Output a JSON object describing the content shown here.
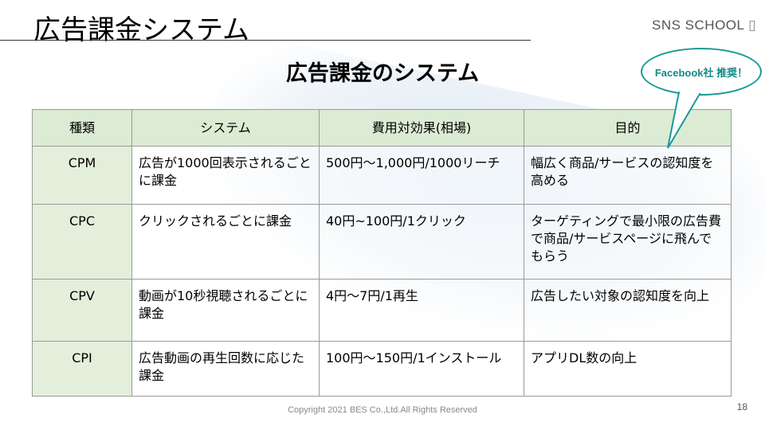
{
  "slide": {
    "title": "広告課金システム",
    "subtitle": "広告課金のシステム",
    "logo": "SNS SCHOOL",
    "bubble": "Facebook社 推奨！",
    "copyright": "Copyright 2021 BES Co.,Ltd.All Rights Reserved",
    "page_number": "18",
    "accent": "#1a9a96"
  },
  "table": {
    "headers": [
      "種類",
      "システム",
      "費用対効果(相場)",
      "目的"
    ],
    "rows": [
      [
        "CPM",
        "広告が1000回表示されるごとに課金",
        "500円～1,000円/1000リーチ",
        "幅広く商品/サービスの認知度を高める"
      ],
      [
        "CPC",
        "クリックされるごとに課金",
        "40円~100円/1クリック",
        "ターゲティングで最小限の広告費で商品/サービスページに飛んでもらう"
      ],
      [
        "CPV",
        "動画が10秒視聴されるごとに課金",
        "4円～7円/1再生",
        "広告したい対象の認知度を向上"
      ],
      [
        "CPI",
        "広告動画の再生回数に応じた課金",
        "100円～150円/1インストール",
        "アプリDL数の向上"
      ]
    ]
  }
}
